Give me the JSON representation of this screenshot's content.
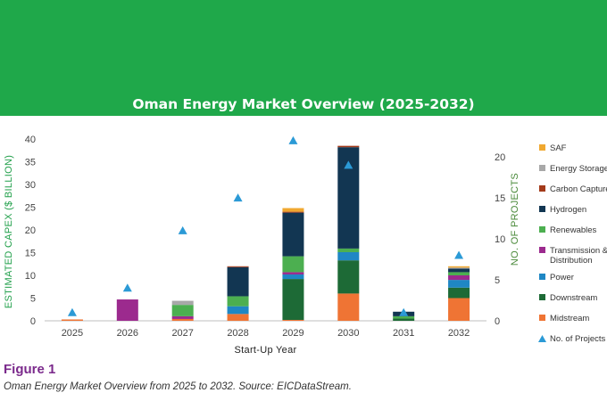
{
  "colors": {
    "banner": "#1fa84a",
    "figure_label": "#7b2a8c",
    "left_axis_title": "#22a04b",
    "right_axis_title": "#4a8a3a"
  },
  "figure": {
    "label": "Figure 1",
    "caption": "Oman Energy Market Overview from 2025 to 2032. Source: EICDataStream."
  },
  "chart_data": {
    "type": "bar",
    "stacked": true,
    "title": "Oman Energy Market Overview (2025-2032)",
    "xlabel": "Start-Up Year",
    "ylabel": "ESTIMATED CAPEX ($ BILLION)",
    "y2label": "NO. OF PROJECTS",
    "categories": [
      "2025",
      "2026",
      "2027",
      "2028",
      "2029",
      "2030",
      "2031",
      "2032"
    ],
    "ylim": [
      0,
      40
    ],
    "yticks": [
      0,
      5,
      10,
      15,
      20,
      25,
      30,
      35,
      40
    ],
    "y2lim": [
      0,
      22.2
    ],
    "y2ticks": [
      0,
      5,
      10,
      15,
      20
    ],
    "grid": false,
    "legend_position": "right",
    "series": [
      {
        "name": "Midstream",
        "color": "#ef7434",
        "values": [
          0.3,
          0,
          0.4,
          1.5,
          0.2,
          6,
          0,
          5
        ]
      },
      {
        "name": "Downstream",
        "color": "#1d6a36",
        "values": [
          0,
          0,
          0,
          0,
          9,
          7.3,
          0.5,
          2.3
        ]
      },
      {
        "name": "Power",
        "color": "#1f87c4",
        "values": [
          0,
          0,
          0,
          1.7,
          1,
          1.8,
          0,
          1.7
        ]
      },
      {
        "name": "Transmission & Distribution",
        "color": "#9c2a8e",
        "values": [
          0,
          4.7,
          0.6,
          0,
          0.5,
          0,
          0,
          1
        ]
      },
      {
        "name": "Renewables",
        "color": "#4caf50",
        "values": [
          0,
          0,
          2.5,
          2.2,
          3.5,
          0.8,
          0.5,
          0.7
        ]
      },
      {
        "name": "Hydrogen",
        "color": "#123652",
        "values": [
          0,
          0,
          0,
          6.4,
          9.6,
          22.3,
          1,
          0.8
        ]
      },
      {
        "name": "Carbon Capture",
        "color": "#a33a1a",
        "values": [
          0,
          0,
          0,
          0.2,
          0.2,
          0.3,
          0,
          0
        ]
      },
      {
        "name": "Energy Storage",
        "color": "#a8a8a8",
        "values": [
          0,
          0,
          0.9,
          0,
          0,
          0,
          0,
          0.2
        ]
      },
      {
        "name": "SAF",
        "color": "#f0a830",
        "values": [
          0,
          0,
          0,
          0,
          0.8,
          0,
          0,
          0.3
        ]
      }
    ],
    "projects": {
      "name": "No. of Projects",
      "color": "#2b9ad6",
      "values": [
        1,
        4,
        11,
        15,
        22,
        19,
        1,
        8
      ]
    }
  }
}
